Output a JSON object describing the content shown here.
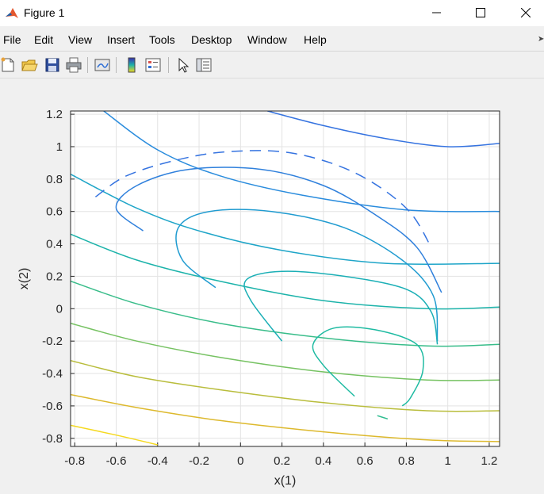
{
  "window": {
    "title": "Figure 1",
    "icon": "matlab-logo-icon",
    "controls": [
      "minimize-icon",
      "maximize-icon",
      "close-icon"
    ]
  },
  "menu": [
    "File",
    "Edit",
    "View",
    "Insert",
    "Tools",
    "Desktop",
    "Window",
    "Help"
  ],
  "toolbar": {
    "buttons": [
      "new-figure-icon",
      "open-file-icon",
      "save-icon",
      "print-icon",
      "link-plot-icon",
      "insert-colorbar-icon",
      "insert-legend-icon",
      "edit-plot-arrow-icon",
      "open-property-inspector-icon"
    ]
  },
  "chart_data": {
    "type": "contour",
    "xlabel": "x(1)",
    "ylabel": "x(2)",
    "xlim": [
      -0.82,
      1.25
    ],
    "ylim": [
      -0.85,
      1.22
    ],
    "xticks": [
      "-0.8",
      "-0.6",
      "-0.4",
      "-0.2",
      "0",
      "0.2",
      "0.4",
      "0.6",
      "0.8",
      "1",
      "1.2"
    ],
    "yticks": [
      "-0.8",
      "-0.6",
      "-0.4",
      "-0.2",
      "0",
      "0.2",
      "0.4",
      "0.6",
      "0.8",
      "1",
      "1.2"
    ],
    "grid": true,
    "colormap": "parula",
    "level_curves": [
      {
        "color": "#3573e0",
        "points": [
          [
            0.13,
            1.22
          ],
          [
            0.4,
            1.13
          ],
          [
            0.7,
            1.05
          ],
          [
            1.0,
            1.0
          ],
          [
            1.25,
            1.02
          ]
        ]
      },
      {
        "color": "#2a8cdd",
        "points": [
          [
            -0.66,
            1.22
          ],
          [
            -0.4,
            0.98
          ],
          [
            -0.1,
            0.82
          ],
          [
            0.3,
            0.7
          ],
          [
            0.8,
            0.61
          ],
          [
            1.25,
            0.6
          ]
        ]
      },
      {
        "color": "#1ea5c8",
        "points": [
          [
            -0.82,
            0.83
          ],
          [
            -0.5,
            0.62
          ],
          [
            -0.2,
            0.48
          ],
          [
            0.2,
            0.36
          ],
          [
            0.7,
            0.28
          ],
          [
            1.25,
            0.28
          ]
        ]
      },
      {
        "color": "#1cb3aa",
        "points": [
          [
            -0.82,
            0.46
          ],
          [
            -0.5,
            0.3
          ],
          [
            -0.1,
            0.17
          ],
          [
            0.4,
            0.05
          ],
          [
            0.9,
            0.0
          ],
          [
            1.25,
            0.01
          ]
        ]
      },
      {
        "color": "#39bd8a",
        "points": [
          [
            -0.82,
            0.17
          ],
          [
            -0.5,
            0.03
          ],
          [
            -0.1,
            -0.09
          ],
          [
            0.4,
            -0.18
          ],
          [
            0.9,
            -0.23
          ],
          [
            1.25,
            -0.22
          ]
        ]
      },
      {
        "color": "#76c262",
        "points": [
          [
            -0.82,
            -0.09
          ],
          [
            -0.5,
            -0.2
          ],
          [
            -0.1,
            -0.3
          ],
          [
            0.4,
            -0.39
          ],
          [
            0.9,
            -0.44
          ],
          [
            1.25,
            -0.44
          ]
        ]
      },
      {
        "color": "#b9bd3c",
        "points": [
          [
            -0.82,
            -0.32
          ],
          [
            -0.5,
            -0.42
          ],
          [
            -0.1,
            -0.5
          ],
          [
            0.4,
            -0.58
          ],
          [
            0.9,
            -0.63
          ],
          [
            1.25,
            -0.63
          ]
        ]
      },
      {
        "color": "#ddb92d",
        "points": [
          [
            -0.82,
            -0.53
          ],
          [
            -0.5,
            -0.61
          ],
          [
            -0.1,
            -0.69
          ],
          [
            0.4,
            -0.76
          ],
          [
            0.9,
            -0.81
          ],
          [
            1.25,
            -0.82
          ]
        ]
      },
      {
        "color": "#f5d91f",
        "points": [
          [
            -0.82,
            -0.72
          ],
          [
            -0.6,
            -0.78
          ],
          [
            -0.4,
            -0.84
          ]
        ]
      }
    ],
    "closed_level_curves": [
      {
        "color": "#3573e0",
        "points": [
          [
            -0.7,
            0.69
          ],
          [
            -0.55,
            0.82
          ],
          [
            -0.3,
            0.92
          ],
          [
            -0.05,
            0.97
          ],
          [
            0.25,
            0.96
          ],
          [
            0.55,
            0.84
          ],
          [
            0.8,
            0.62
          ],
          [
            0.92,
            0.38
          ]
        ],
        "dashed": true
      },
      {
        "color": "#2f80dc",
        "points": [
          [
            -0.47,
            0.48
          ],
          [
            -0.6,
            0.62
          ],
          [
            -0.5,
            0.76
          ],
          [
            -0.25,
            0.86
          ],
          [
            0.1,
            0.86
          ],
          [
            0.4,
            0.76
          ],
          [
            0.65,
            0.58
          ],
          [
            0.85,
            0.38
          ],
          [
            0.97,
            0.1
          ]
        ]
      },
      {
        "color": "#1f9bd0",
        "points": [
          [
            -0.12,
            0.13
          ],
          [
            -0.28,
            0.3
          ],
          [
            -0.3,
            0.5
          ],
          [
            -0.15,
            0.6
          ],
          [
            0.15,
            0.6
          ],
          [
            0.5,
            0.5
          ],
          [
            0.78,
            0.3
          ],
          [
            0.93,
            0.08
          ],
          [
            0.95,
            -0.2
          ]
        ]
      },
      {
        "color": "#1bafb6",
        "points": [
          [
            0.2,
            -0.2
          ],
          [
            0.05,
            0.05
          ],
          [
            0.03,
            0.18
          ],
          [
            0.2,
            0.23
          ],
          [
            0.5,
            0.2
          ],
          [
            0.8,
            0.12
          ],
          [
            0.92,
            -0.02
          ],
          [
            0.95,
            -0.22
          ]
        ]
      },
      {
        "color": "#1fbba2",
        "points": [
          [
            0.55,
            -0.54
          ],
          [
            0.4,
            -0.35
          ],
          [
            0.35,
            -0.22
          ],
          [
            0.45,
            -0.12
          ],
          [
            0.65,
            -0.13
          ],
          [
            0.85,
            -0.22
          ],
          [
            0.88,
            -0.38
          ],
          [
            0.82,
            -0.55
          ],
          [
            0.78,
            -0.6
          ]
        ]
      },
      {
        "color": "#2fbd90",
        "points": [
          [
            0.66,
            -0.66
          ],
          [
            0.71,
            -0.68
          ]
        ]
      }
    ]
  }
}
